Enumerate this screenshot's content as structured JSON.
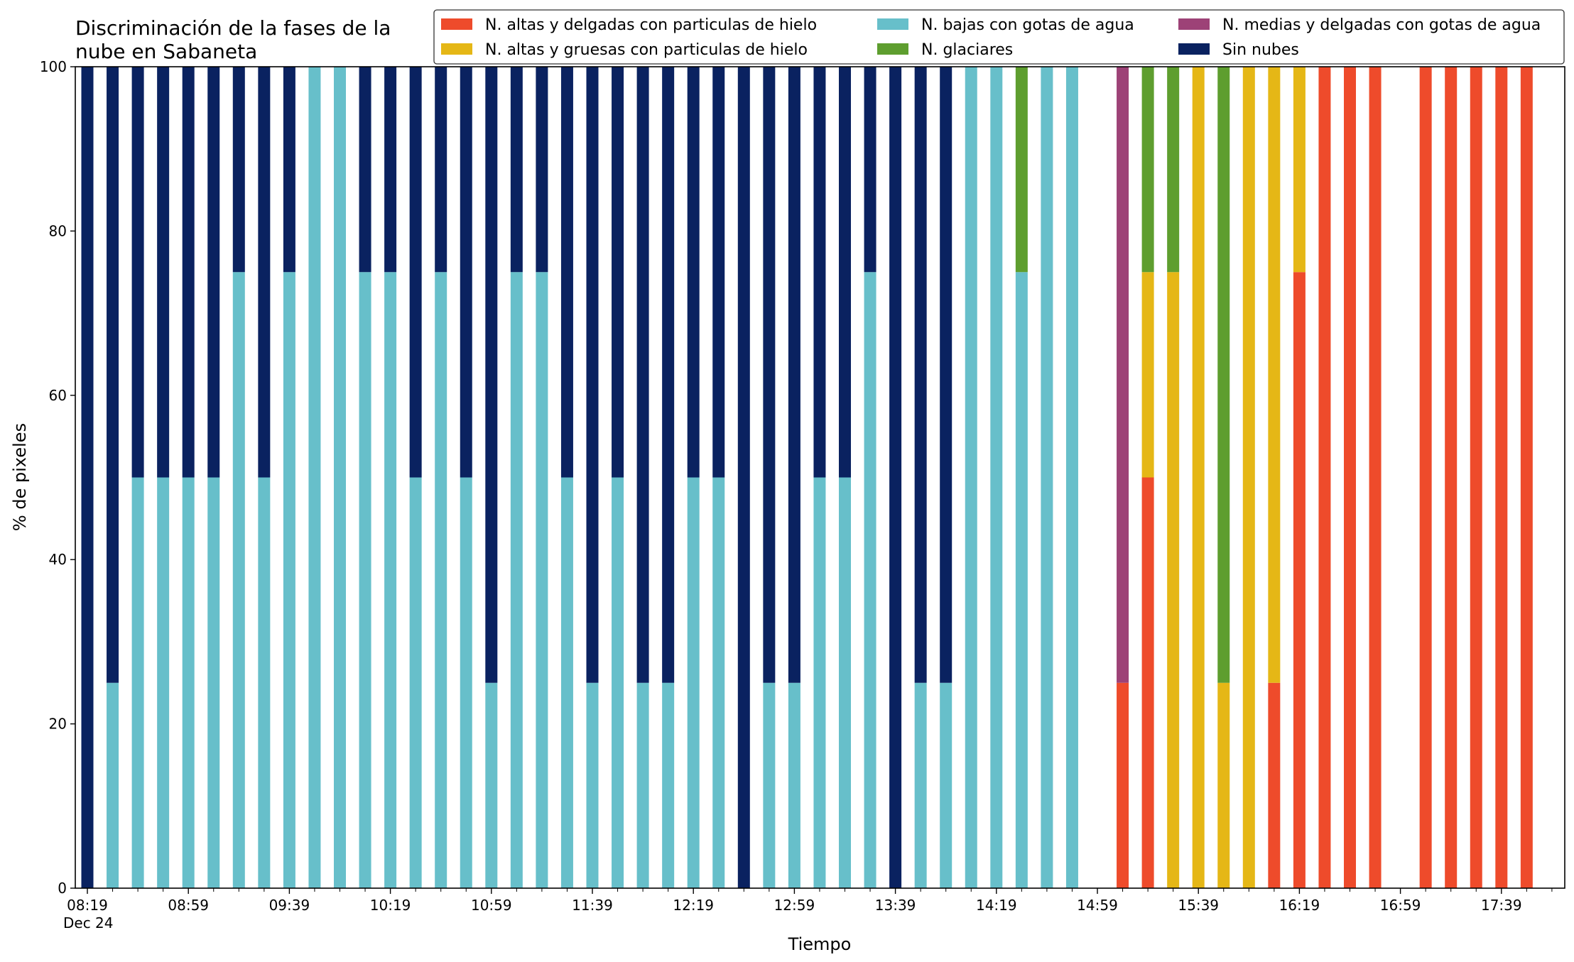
{
  "chart_data": {
    "type": "bar",
    "stacked": true,
    "title": "Discriminación de la fases de la\nnube en Sabaneta",
    "xlabel": "Tiempo",
    "ylabel": "% de pixeles",
    "ylim": [
      0,
      100
    ],
    "yticks": [
      0,
      20,
      40,
      60,
      80,
      100
    ],
    "grid": false,
    "legend_position": "top-right",
    "x_start": "08:19",
    "x_interval_minutes": 10,
    "x_tick_labels": [
      "08:19\nDec 24",
      "08:59",
      "09:39",
      "10:19",
      "10:59",
      "11:39",
      "12:19",
      "12:59",
      "13:39",
      "14:19",
      "14:59",
      "15:39",
      "16:19",
      "16:59",
      "17:39"
    ],
    "categories": [
      "08:19",
      "08:29",
      "08:39",
      "08:49",
      "08:59",
      "09:09",
      "09:19",
      "09:29",
      "09:39",
      "09:49",
      "09:59",
      "10:09",
      "10:19",
      "10:29",
      "10:39",
      "10:49",
      "10:59",
      "11:09",
      "11:19",
      "11:29",
      "11:39",
      "11:49",
      "11:59",
      "12:09",
      "12:19",
      "12:29",
      "12:39",
      "12:49",
      "12:59",
      "13:09",
      "13:19",
      "13:29",
      "13:39",
      "13:49",
      "13:59",
      "14:09",
      "14:19",
      "14:29",
      "14:39",
      "14:49",
      "14:59",
      "15:09",
      "15:19",
      "15:29",
      "15:39",
      "15:49",
      "15:59",
      "16:09",
      "16:19",
      "16:29",
      "16:39",
      "16:49",
      "16:59",
      "17:09",
      "17:19",
      "17:29",
      "17:39",
      "17:49"
    ],
    "series": [
      {
        "name": "N. altas y delgadas con particulas de hielo",
        "color": "#EE4B2B",
        "values": [
          0,
          0,
          0,
          0,
          0,
          0,
          0,
          0,
          0,
          0,
          0,
          0,
          0,
          0,
          0,
          0,
          0,
          0,
          0,
          0,
          0,
          0,
          0,
          0,
          0,
          0,
          0,
          0,
          0,
          0,
          0,
          0,
          0,
          0,
          0,
          0,
          0,
          0,
          0,
          0,
          0,
          25,
          50,
          0,
          0,
          0,
          0,
          25,
          75,
          100,
          100,
          100,
          0,
          100,
          100,
          100,
          100,
          100
        ]
      },
      {
        "name": "N. altas y gruesas con particulas de hielo",
        "color": "#E5B716",
        "values": [
          0,
          0,
          0,
          0,
          0,
          0,
          0,
          0,
          0,
          0,
          0,
          0,
          0,
          0,
          0,
          0,
          0,
          0,
          0,
          0,
          0,
          0,
          0,
          0,
          0,
          0,
          0,
          0,
          0,
          0,
          0,
          0,
          0,
          0,
          0,
          0,
          0,
          0,
          0,
          0,
          0,
          0,
          25,
          75,
          100,
          25,
          100,
          75,
          25,
          0,
          0,
          0,
          0,
          0,
          0,
          0,
          0,
          0
        ]
      },
      {
        "name": "N. bajas con gotas de agua",
        "color": "#67BFCA",
        "values": [
          0,
          25,
          50,
          50,
          50,
          50,
          75,
          50,
          75,
          100,
          100,
          75,
          75,
          50,
          75,
          50,
          25,
          75,
          75,
          50,
          25,
          50,
          25,
          25,
          50,
          50,
          0,
          25,
          25,
          50,
          50,
          75,
          0,
          25,
          25,
          100,
          100,
          75,
          100,
          100,
          0,
          0,
          0,
          0,
          0,
          0,
          0,
          0,
          0,
          0,
          0,
          0,
          0,
          0,
          0,
          0,
          0,
          0
        ]
      },
      {
        "name": "N. glaciares",
        "color": "#5E9E2F",
        "values": [
          0,
          0,
          0,
          0,
          0,
          0,
          0,
          0,
          0,
          0,
          0,
          0,
          0,
          0,
          0,
          0,
          0,
          0,
          0,
          0,
          0,
          0,
          0,
          0,
          0,
          0,
          0,
          0,
          0,
          0,
          0,
          0,
          0,
          0,
          0,
          0,
          0,
          25,
          0,
          0,
          0,
          0,
          25,
          25,
          0,
          75,
          0,
          0,
          0,
          0,
          0,
          0,
          0,
          0,
          0,
          0,
          0,
          0
        ]
      },
      {
        "name": "N. medias y delgadas con gotas de agua",
        "color": "#9D4277",
        "values": [
          0,
          0,
          0,
          0,
          0,
          0,
          0,
          0,
          0,
          0,
          0,
          0,
          0,
          0,
          0,
          0,
          0,
          0,
          0,
          0,
          0,
          0,
          0,
          0,
          0,
          0,
          0,
          0,
          0,
          0,
          0,
          0,
          0,
          0,
          0,
          0,
          0,
          0,
          0,
          0,
          0,
          75,
          0,
          0,
          0,
          0,
          0,
          0,
          0,
          0,
          0,
          0,
          0,
          0,
          0,
          0,
          0,
          0
        ]
      },
      {
        "name": "Sin nubes",
        "color": "#0A2260",
        "values": [
          100,
          75,
          50,
          50,
          50,
          50,
          25,
          50,
          25,
          0,
          0,
          25,
          25,
          50,
          25,
          50,
          75,
          25,
          25,
          50,
          75,
          50,
          75,
          75,
          50,
          50,
          100,
          75,
          75,
          50,
          50,
          25,
          100,
          75,
          75,
          0,
          0,
          0,
          0,
          0,
          0,
          0,
          0,
          0,
          0,
          0,
          0,
          0,
          0,
          0,
          0,
          0,
          0,
          0,
          0,
          0,
          0,
          0
        ]
      }
    ],
    "legend_order": [
      0,
      1,
      2,
      3,
      4,
      5
    ]
  }
}
